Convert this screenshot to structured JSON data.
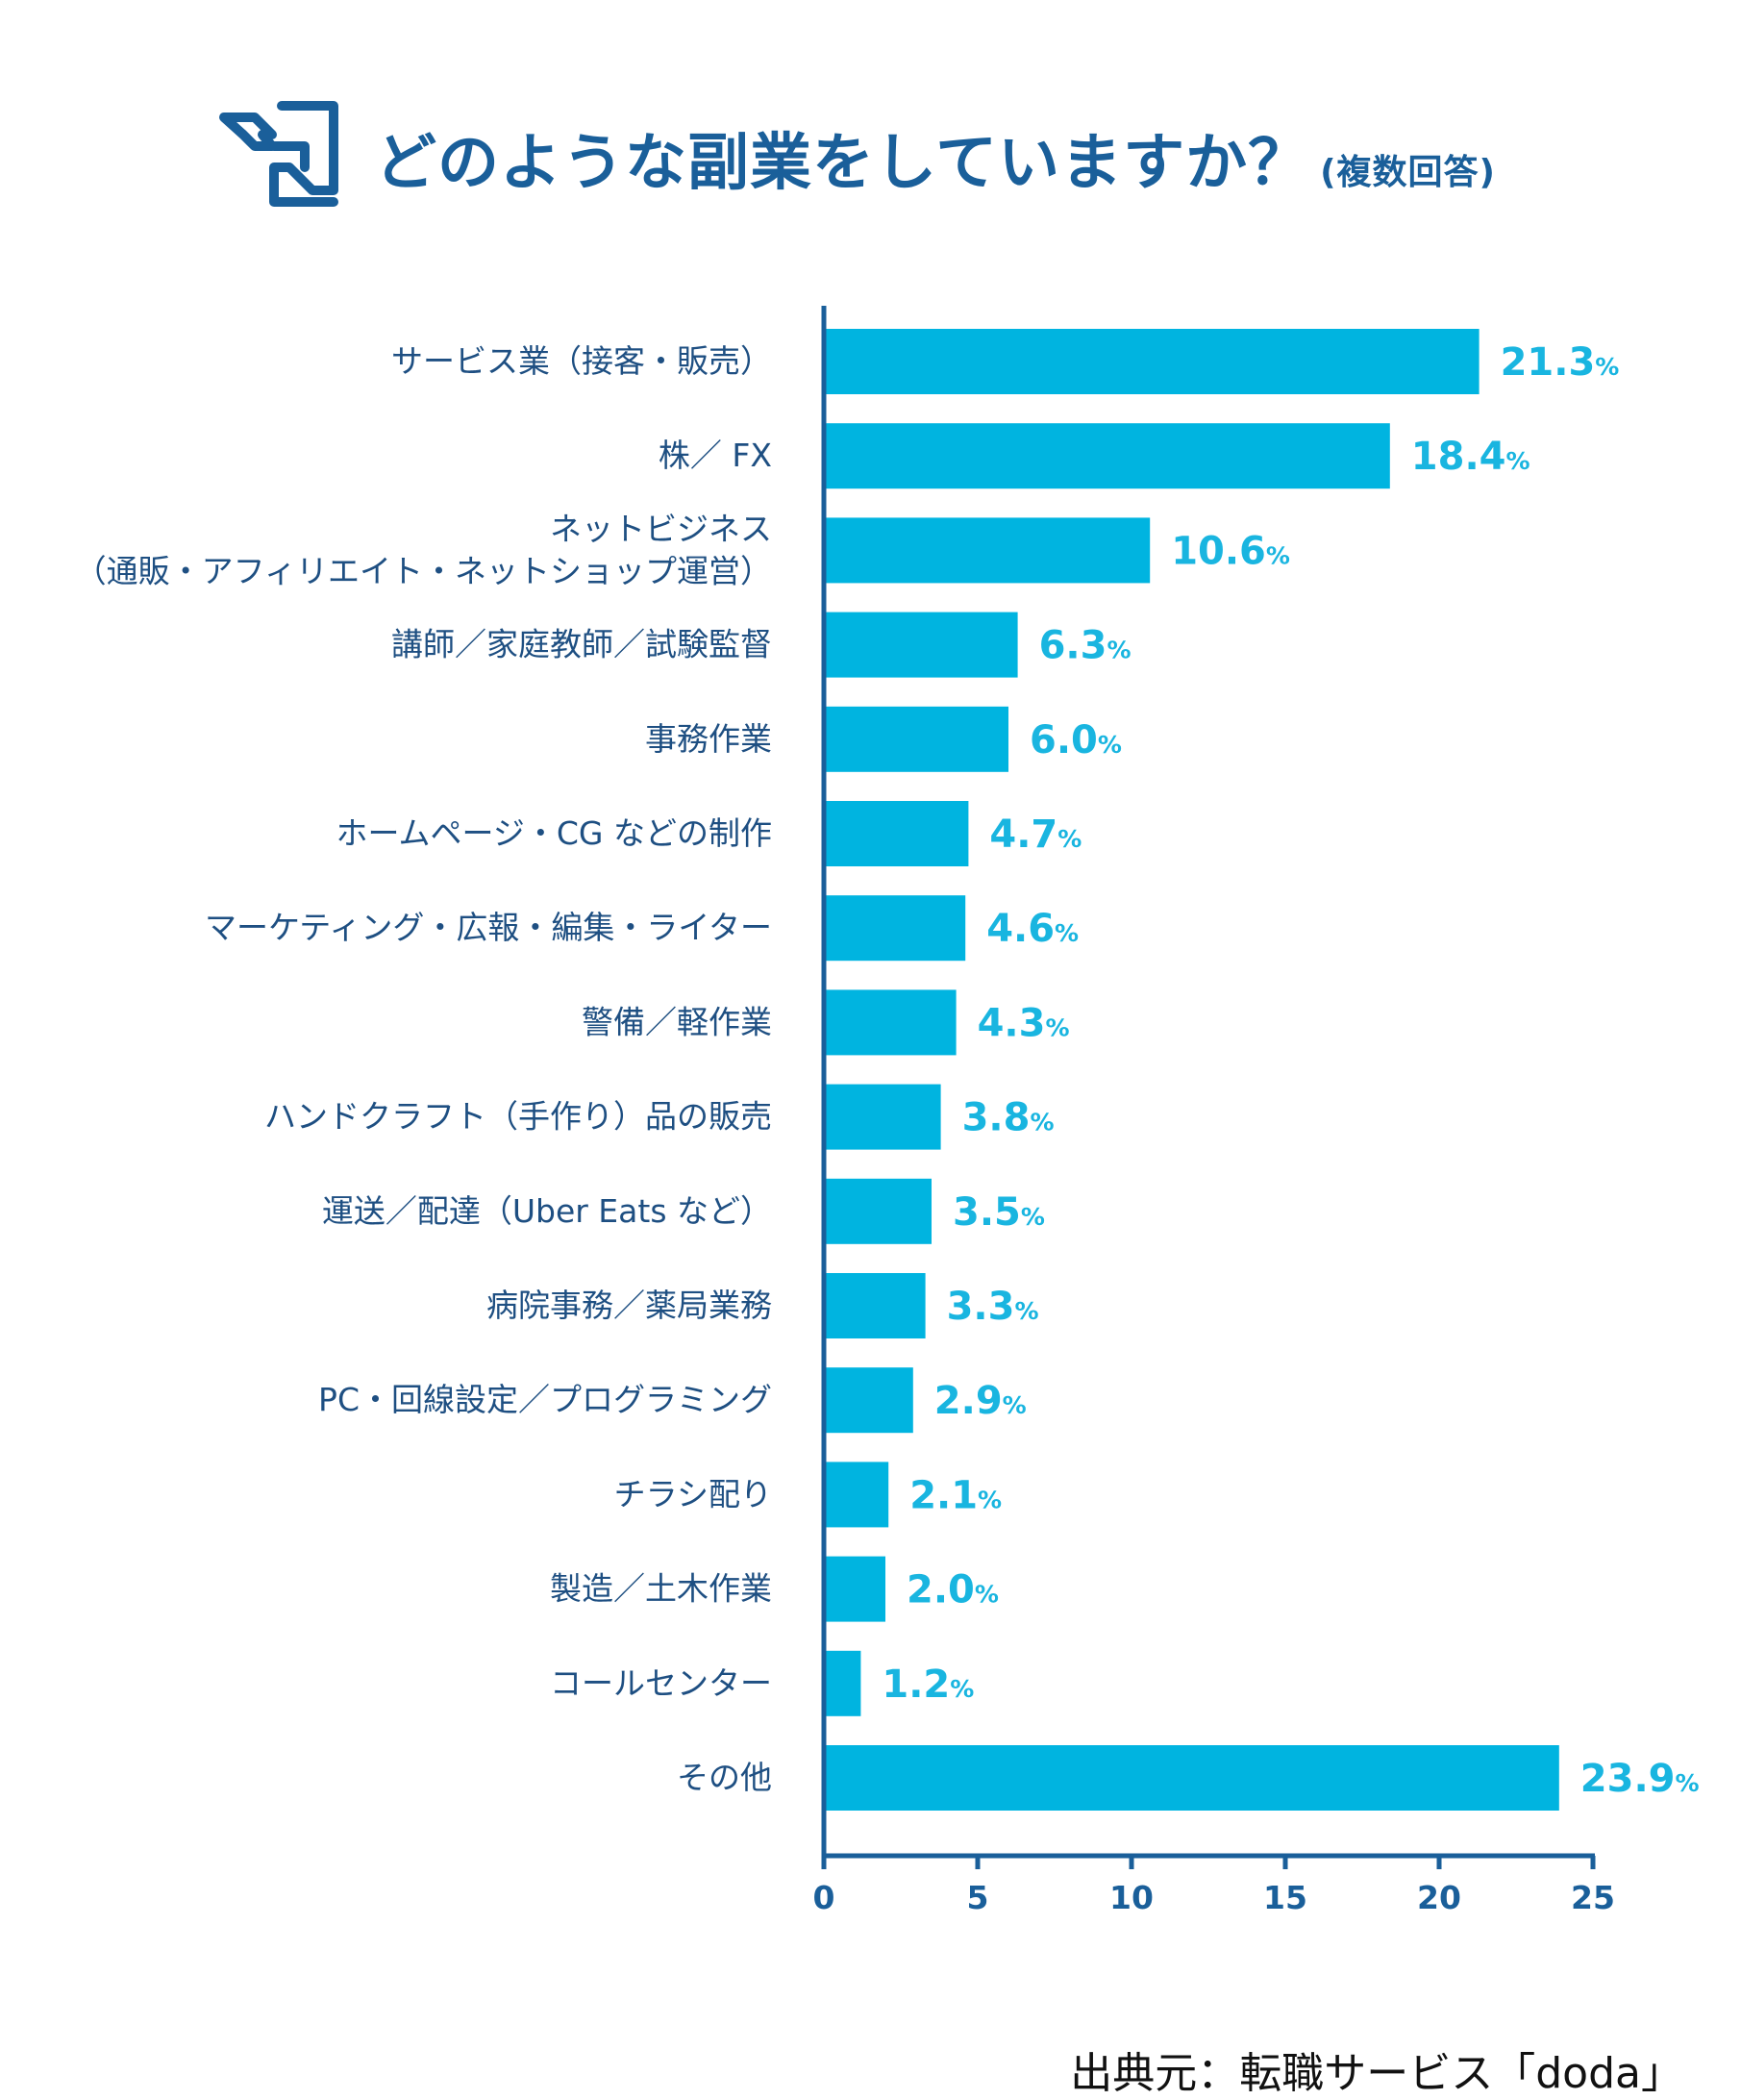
{
  "header": {
    "title": "どのような副業をしていますか？",
    "subtitle": "(複数回答)",
    "icon": "flying-document-icon"
  },
  "colors": {
    "bar": "#00b4e0",
    "axis": "#1a5f9a",
    "label": "#1e4f82",
    "value": "#19b5e0"
  },
  "chart_data": {
    "type": "bar",
    "orientation": "horizontal",
    "title": "どのような副業をしていますか？",
    "xlim": [
      0,
      25
    ],
    "ticks": [
      0,
      5,
      10,
      15,
      20,
      25
    ],
    "unit": "%",
    "categories": [
      [
        "サービス業（接客・販売）"
      ],
      [
        "株／ FX"
      ],
      [
        "ネットビジネス",
        "（通販・アフィリエイト・ネットショップ運営）"
      ],
      [
        "講師／家庭教師／試験監督"
      ],
      [
        "事務作業"
      ],
      [
        "ホームページ・CG などの制作"
      ],
      [
        "マーケティング・広報・編集・ライター"
      ],
      [
        "警備／軽作業"
      ],
      [
        "ハンドクラフト（手作り）品の販売"
      ],
      [
        "運送／配達（Uber Eats など）"
      ],
      [
        "病院事務／薬局業務"
      ],
      [
        "PC・回線設定／プログラミング"
      ],
      [
        "チラシ配り"
      ],
      [
        "製造／土木作業"
      ],
      [
        "コールセンター"
      ],
      [
        "その他"
      ]
    ],
    "values": [
      21.3,
      18.4,
      10.6,
      6.3,
      6.0,
      4.7,
      4.6,
      4.3,
      3.8,
      3.5,
      3.3,
      2.9,
      2.1,
      2.0,
      1.2,
      23.9
    ],
    "value_labels": [
      "21.3",
      "18.4",
      "10.6",
      "6.3",
      "6.0",
      "4.7",
      "4.6",
      "4.3",
      "3.8",
      "3.5",
      "3.3",
      "2.9",
      "2.1",
      "2.0",
      "1.2",
      "23.9"
    ]
  },
  "footer": {
    "source": "出典元：転職サービス「doda」"
  }
}
